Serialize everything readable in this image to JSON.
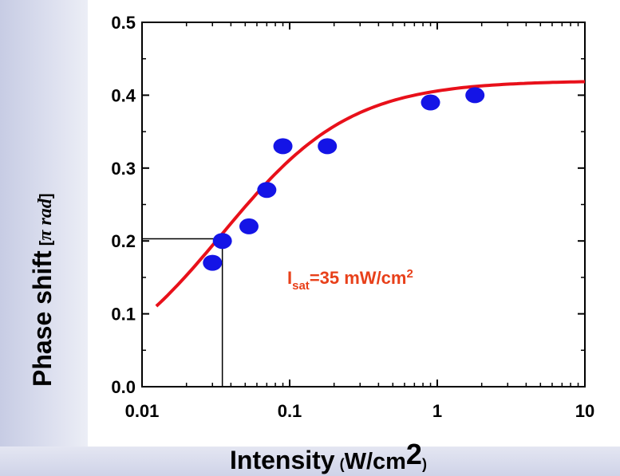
{
  "chart_data": {
    "type": "scatter",
    "title": "",
    "xlabel": "Intensity",
    "xlabel_unit_base": "W/cm",
    "xlabel_unit_sup": "2",
    "ylabel": "Phase shift",
    "ylabel_unit": "π rad",
    "xscale": "log",
    "xlim": [
      0.01,
      10
    ],
    "ylim": [
      0.0,
      0.5
    ],
    "x_ticks": [
      "0.01",
      "0.1",
      "1",
      "10"
    ],
    "y_ticks": [
      "0.0",
      "0.1",
      "0.2",
      "0.3",
      "0.4",
      "0.5"
    ],
    "grid": false,
    "series": [
      {
        "kind": "points",
        "color": "#1414e6",
        "x": [
          0.03,
          0.035,
          0.053,
          0.07,
          0.09,
          0.18,
          0.9,
          1.8
        ],
        "y": [
          0.17,
          0.2,
          0.22,
          0.27,
          0.33,
          0.33,
          0.39,
          0.4
        ]
      },
      {
        "kind": "fit",
        "color": "#e8101a",
        "x_range": [
          0.0125,
          10
        ],
        "y_max": 0.42,
        "x_sat": 0.035
      }
    ],
    "annotation": {
      "text_main": "I",
      "text_sub": "sat",
      "text_rest": "=35 mW/cm",
      "text_sup": "2",
      "color": "#e8401a"
    },
    "guide_lines": {
      "x": 0.035,
      "y": 0.203
    }
  }
}
